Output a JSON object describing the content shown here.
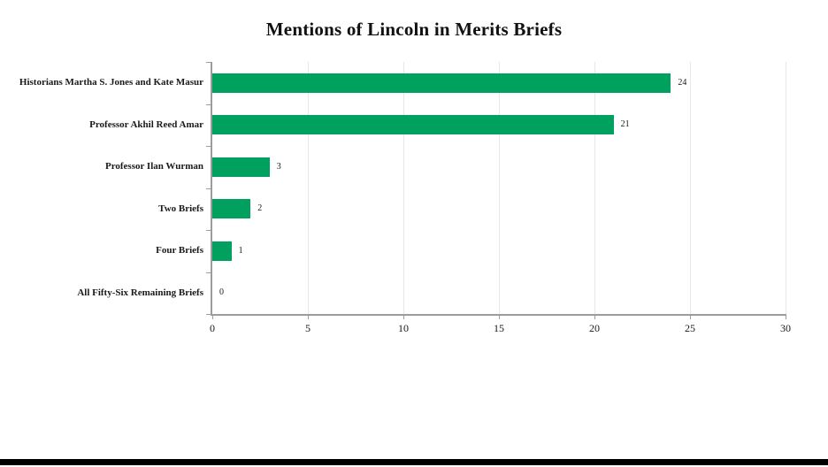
{
  "chart_data": {
    "type": "bar",
    "orientation": "horizontal",
    "title": "Mentions of Lincoln in Merits Briefs",
    "categories": [
      "Historians Martha S. Jones and Kate Masur",
      "Professor Akhil Reed Amar",
      "Professor Ilan Wurman",
      "Two Briefs",
      "Four Briefs",
      "All Fifty-Six Remaining Briefs"
    ],
    "values": [
      24,
      21,
      3,
      2,
      1,
      0
    ],
    "data_labels": [
      "24",
      "21",
      "3",
      "2",
      "1",
      "0"
    ],
    "xlabel": "",
    "ylabel": "",
    "xlim": [
      0,
      30
    ],
    "x_ticks": [
      0,
      5,
      10,
      15,
      20,
      25,
      30
    ],
    "grid": "vertical-gridlines-on",
    "legend": "none",
    "bar_color": "#00a05f",
    "axis_color": "#9c9c9c",
    "gridline_color": "#e7e7e7",
    "text_color": "#1a1a1a",
    "background_color": "#ffffff",
    "window_edge_color": "#000000"
  }
}
